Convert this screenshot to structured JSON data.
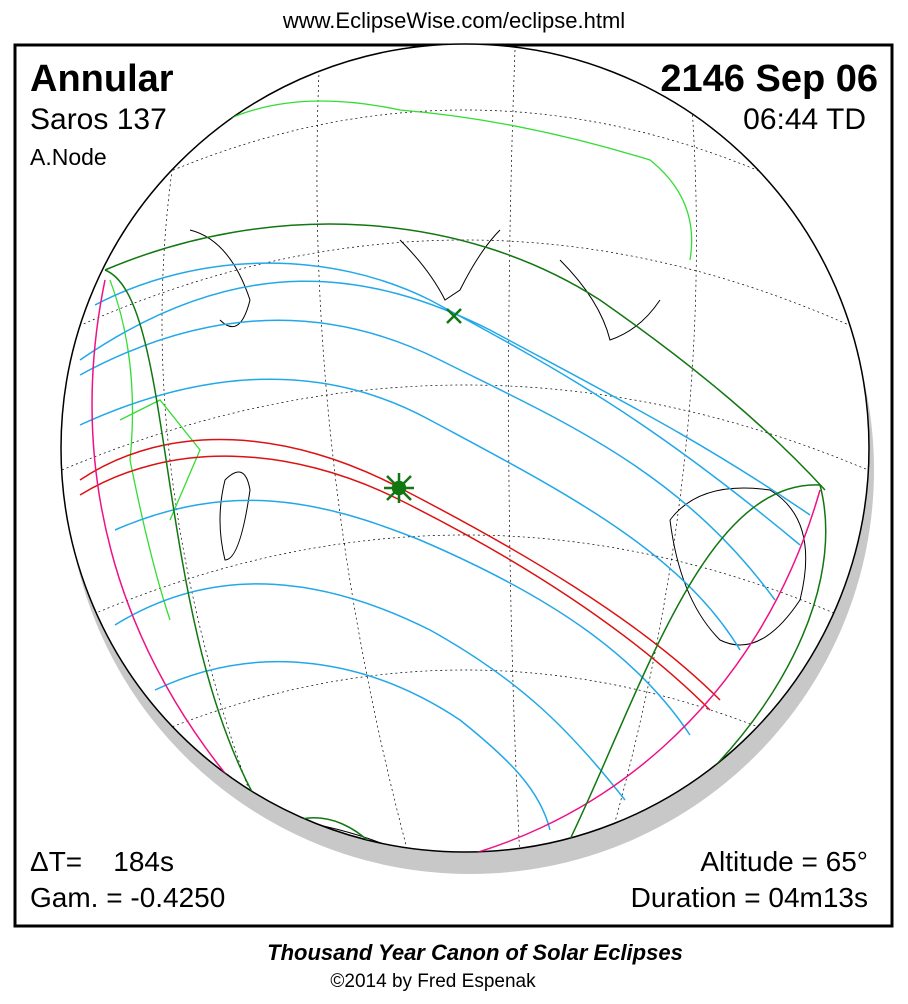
{
  "header": {
    "url": "www.EclipseWise.com/eclipse.html"
  },
  "panel": {
    "eclipse_type": "Annular",
    "saros": "Saros 137",
    "node": "A.Node",
    "date": "2146 Sep 06",
    "time": "06:44 TD",
    "delta_t": "ΔT=    184s",
    "gamma": "Gam. = -0.4250",
    "altitude": "Altitude = 65°",
    "duration": "Duration = 04m13s"
  },
  "footer": {
    "title": "Thousand Year Canon of Solar Eclipses",
    "credit": "©2014 by Fred Espenak"
  }
}
